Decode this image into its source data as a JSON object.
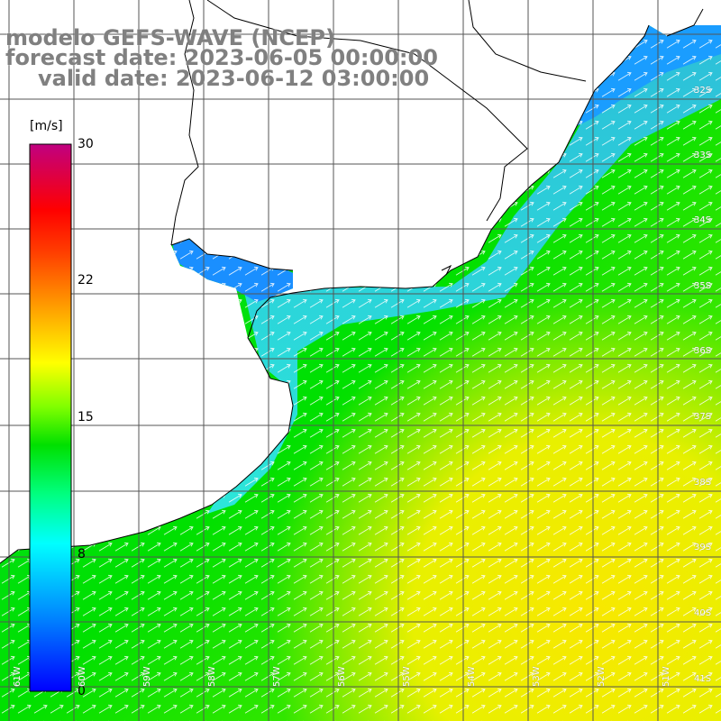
{
  "title": {
    "line1": "modelo GEFS-WAVE (NCEP)",
    "line2": "forecast date: 2023-06-05 00:00:00",
    "line3": "valid date: 2023-06-12 03:00:00"
  },
  "colorbar": {
    "unit": "[m/s]",
    "min": 0,
    "max": 30,
    "ticks": [
      "30",
      "22",
      "15",
      "8",
      "0"
    ],
    "colors": [
      "#0000ff",
      "#0080ff",
      "#00ffff",
      "#00ff80",
      "#00e000",
      "#80ff00",
      "#ffff00",
      "#ffa000",
      "#ff4000",
      "#ff0000",
      "#c00080"
    ]
  },
  "lat_labels": [
    "32S",
    "33S",
    "34S",
    "35S",
    "36S",
    "37S",
    "38S",
    "39S",
    "40S",
    "41S"
  ],
  "lon_labels": [
    "61W",
    "60W",
    "59W",
    "58W",
    "57W",
    "56W",
    "55W",
    "54W",
    "53W",
    "52W",
    "51W"
  ],
  "field": {
    "wind_direction": "SW to NE",
    "colors": {
      "land": "#ffffff",
      "coastline": "#000000",
      "grid": "#555555",
      "estuary": "#1a8fff",
      "near_coast": "#33ccff",
      "open_sea": "#00e000",
      "high_winds": "#f0f000"
    }
  }
}
